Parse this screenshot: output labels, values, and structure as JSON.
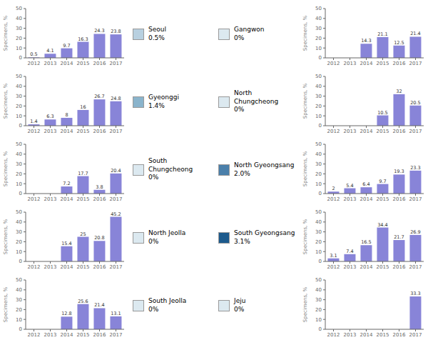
{
  "chart_data": [
    {
      "type": "bar",
      "categories": [
        "2012",
        "2013",
        "2014",
        "2015",
        "2016",
        "2017"
      ],
      "values": [
        0.5,
        4.1,
        9.7,
        16.3,
        24.3,
        23.8
      ],
      "ylim": [
        0,
        50
      ],
      "yticks": [
        0,
        10,
        20,
        30,
        40,
        50
      ],
      "ylabel": "Specimens, %",
      "data_labels": true,
      "grid": false,
      "annotations": [
        {
          "text": "Seoul\n0.5%",
          "color": "#b8d0e0"
        }
      ]
    },
    {
      "type": "bar",
      "categories": [
        "2012",
        "2013",
        "2014",
        "2015",
        "2016",
        "2017"
      ],
      "values": [
        1.4,
        6.3,
        8.0,
        16.0,
        26.7,
        24.8
      ],
      "ylim": [
        0,
        50
      ],
      "yticks": [
        0,
        10,
        20,
        30,
        40,
        50
      ],
      "ylabel": "Specimens, %",
      "data_labels": true,
      "grid": false,
      "annotations": [
        {
          "text": "Gyeonggi\n1.4%",
          "color": "#8ab4cc"
        }
      ]
    },
    {
      "type": "bar",
      "categories": [
        "2012",
        "2013",
        "2014",
        "2015",
        "2016",
        "2017"
      ],
      "values": [
        0,
        0,
        7.2,
        17.7,
        3.8,
        20.4
      ],
      "ylim": [
        0,
        50
      ],
      "yticks": [
        0,
        10,
        20,
        30,
        40,
        50
      ],
      "ylabel": "Specimens, %",
      "data_labels": true,
      "grid": false,
      "annotations": [
        {
          "text": "South Chungcheong\n0%",
          "color": "#dce9f0"
        }
      ]
    },
    {
      "type": "bar",
      "categories": [
        "2012",
        "2013",
        "2014",
        "2015",
        "2016",
        "2017"
      ],
      "values": [
        0,
        0,
        15.4,
        25.0,
        20.8,
        45.2
      ],
      "ylim": [
        0,
        50
      ],
      "yticks": [
        0,
        10,
        20,
        30,
        40,
        50
      ],
      "ylabel": "Specimens, %",
      "data_labels": true,
      "grid": false,
      "annotations": [
        {
          "text": "North Jeolla\n0%",
          "color": "#dce9f0"
        }
      ]
    },
    {
      "type": "bar",
      "categories": [
        "2012",
        "2013",
        "2014",
        "2015",
        "2016",
        "2017"
      ],
      "values": [
        0,
        0,
        12.8,
        25.6,
        21.4,
        13.1
      ],
      "ylim": [
        0,
        50
      ],
      "yticks": [
        0,
        10,
        20,
        30,
        40,
        50
      ],
      "ylabel": "Specimens, %",
      "data_labels": true,
      "grid": false,
      "annotations": [
        {
          "text": "South Jeolla\n0%",
          "color": "#dce9f0"
        }
      ]
    },
    {
      "type": "bar",
      "categories": [
        "2012",
        "2013",
        "2014",
        "2015",
        "2016",
        "2017"
      ],
      "values": [
        0,
        0,
        14.3,
        21.1,
        12.5,
        21.4
      ],
      "ylim": [
        0,
        50
      ],
      "yticks": [
        0,
        10,
        20,
        30,
        40,
        50
      ],
      "ylabel": "Specimens, %",
      "data_labels": true,
      "grid": false,
      "annotations": [
        {
          "text": "Gangwon\n0%",
          "color": "#dce9f0"
        }
      ]
    },
    {
      "type": "bar",
      "categories": [
        "2012",
        "2013",
        "2014",
        "2015",
        "2016",
        "2017"
      ],
      "values": [
        0,
        0,
        0,
        10.5,
        32.0,
        20.5
      ],
      "ylim": [
        0,
        50
      ],
      "yticks": [
        0,
        10,
        20,
        30,
        40,
        50
      ],
      "ylabel": "Specimens, %",
      "data_labels": true,
      "grid": false,
      "annotations": [
        {
          "text": "North Chungcheong\n0%",
          "color": "#dce9f0"
        }
      ]
    },
    {
      "type": "bar",
      "categories": [
        "2012",
        "2013",
        "2014",
        "2015",
        "2016",
        "2017"
      ],
      "values": [
        2.0,
        5.4,
        6.4,
        9.7,
        19.3,
        23.3
      ],
      "ylim": [
        0,
        50
      ],
      "yticks": [
        0,
        10,
        20,
        30,
        40,
        50
      ],
      "ylabel": "Specimens, %",
      "data_labels": true,
      "grid": false,
      "annotations": [
        {
          "text": "North Gyeongsang\n2.0%",
          "color": "#4a7faa"
        }
      ]
    },
    {
      "type": "bar",
      "categories": [
        "2012",
        "2013",
        "2014",
        "2015",
        "2016",
        "2017"
      ],
      "values": [
        3.1,
        7.4,
        16.5,
        34.4,
        21.7,
        26.9
      ],
      "ylim": [
        0,
        50
      ],
      "yticks": [
        0,
        10,
        20,
        30,
        40,
        50
      ],
      "ylabel": "Specimens, %",
      "data_labels": true,
      "grid": false,
      "annotations": [
        {
          "text": "South Gyeongsang\n3.1%",
          "color": "#1c5a8c"
        }
      ]
    },
    {
      "type": "bar",
      "categories": [
        "2012",
        "2013",
        "2014",
        "2015",
        "2016",
        "2017"
      ],
      "values": [
        0,
        0,
        0,
        0,
        0,
        33.3
      ],
      "ylim": [
        0,
        50
      ],
      "yticks": [
        0,
        10,
        20,
        30,
        40,
        50
      ],
      "ylabel": "Specimens, %",
      "data_labels": true,
      "grid": false,
      "annotations": [
        {
          "text": "Jeju\n0%",
          "color": "#dce9f0"
        }
      ]
    }
  ]
}
